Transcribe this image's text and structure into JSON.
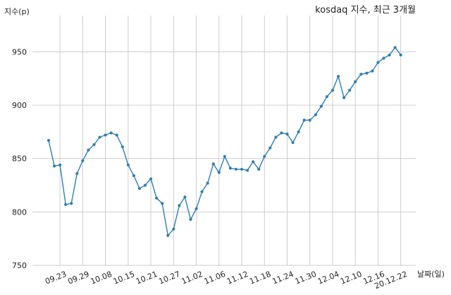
{
  "chart_data": {
    "type": "line",
    "title": "kosdaq 지수, 최근 3개월",
    "xlabel": "날짜(일)",
    "ylabel": "지수(p)",
    "ylim": [
      750,
      980
    ],
    "grid": true,
    "y_ticks": [
      750,
      800,
      850,
      900,
      950
    ],
    "x_ticks": [
      "09.23",
      "09.29",
      "10.08",
      "10.15",
      "10.21",
      "10.27",
      "11.02",
      "11.06",
      "11.12",
      "11.18",
      "11.24",
      "11.30",
      "12.04",
      "12.10",
      "12.16",
      "20.12.22"
    ],
    "series": [
      {
        "color": "#2f7fb0",
        "values": [
          867,
          843,
          844,
          807,
          808,
          836,
          848,
          858,
          863,
          870,
          872,
          874,
          872,
          861,
          844,
          834,
          822,
          825,
          831,
          813,
          808,
          778,
          784,
          806,
          814,
          793,
          803,
          819,
          827,
          845,
          837,
          852,
          841,
          840,
          840,
          839,
          847,
          840,
          852,
          860,
          870,
          874,
          873,
          865,
          875,
          886,
          886,
          891,
          899,
          908,
          914,
          927,
          907,
          914,
          922,
          929,
          930,
          932,
          940,
          944,
          947,
          954,
          947
        ]
      }
    ]
  }
}
